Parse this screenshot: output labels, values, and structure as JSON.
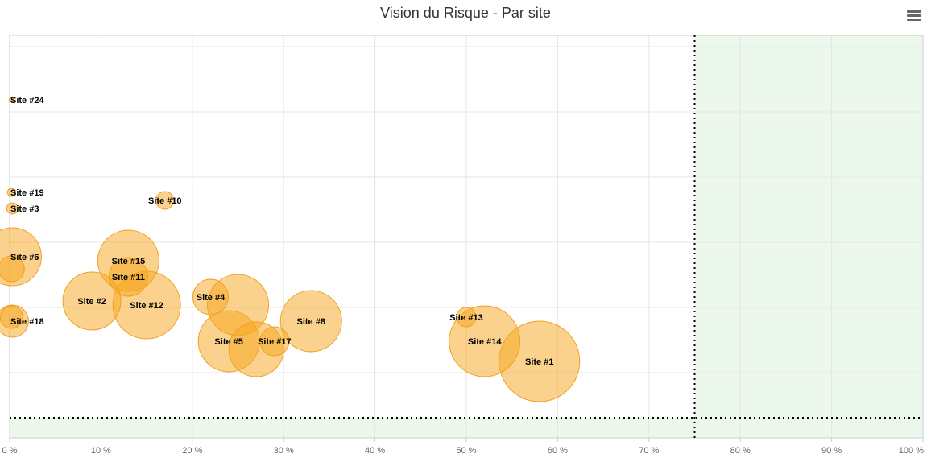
{
  "chart_data": {
    "type": "bubble",
    "title": "Vision du Risque - Par site",
    "x_ticks": [
      "0 %",
      "10 %",
      "20 %",
      "30 %",
      "40 %",
      "50 %",
      "60 %",
      "70 %",
      "80 %",
      "90 %",
      "100 %"
    ],
    "xlim": [
      0,
      100
    ],
    "ylim": [
      0,
      100
    ],
    "threshold_x": 75,
    "threshold_y": 5,
    "grid": true,
    "colors": {
      "bubble_fill": "#f7a51c",
      "bubble_stroke": "#f0a020",
      "zone_fill": "#d9f2d9",
      "grid": "#e6e6e6",
      "threshold_line": "#000000"
    },
    "points": [
      {
        "label": "Site #24",
        "x": 0.2,
        "y": 84,
        "z": 3
      },
      {
        "label": "Site #19",
        "x": 0.2,
        "y": 61,
        "z": 5
      },
      {
        "label": "Site #3",
        "x": 0.3,
        "y": 57,
        "z": 7
      },
      {
        "label": "Site #10",
        "x": 17,
        "y": 59,
        "z": 11
      },
      {
        "label": "Site #6",
        "x": 0.3,
        "y": 45,
        "z": 36
      },
      {
        "label": "Site #15",
        "x": 13,
        "y": 44,
        "z": 38
      },
      {
        "label": "Site #11",
        "x": 13,
        "y": 40,
        "z": 24
      },
      {
        "label": "Site #2",
        "x": 9,
        "y": 34,
        "z": 36
      },
      {
        "label": "Site #12",
        "x": 15,
        "y": 33,
        "z": 42
      },
      {
        "label": "Site #4",
        "x": 22,
        "y": 35,
        "z": 22
      },
      {
        "label": "Site #18",
        "x": 0.3,
        "y": 29,
        "z": 20
      },
      {
        "label": "Site #5",
        "x": 24,
        "y": 24,
        "z": 38
      },
      {
        "label": "Site #17",
        "x": 29,
        "y": 24,
        "z": 18
      },
      {
        "label": "Site #8",
        "x": 33,
        "y": 29,
        "z": 38
      },
      {
        "label": "Site #13",
        "x": 50,
        "y": 30,
        "z": 12
      },
      {
        "label": "Site #14",
        "x": 52,
        "y": 24,
        "z": 44
      },
      {
        "label": "Site #1",
        "x": 58,
        "y": 19,
        "z": 50
      }
    ],
    "extra_bubbles": [
      {
        "x": 0.2,
        "y": 42,
        "z": 16
      },
      {
        "x": 25,
        "y": 33,
        "z": 38
      },
      {
        "x": 27,
        "y": 22,
        "z": 34
      },
      {
        "x": 0.2,
        "y": 30,
        "z": 14
      }
    ]
  }
}
